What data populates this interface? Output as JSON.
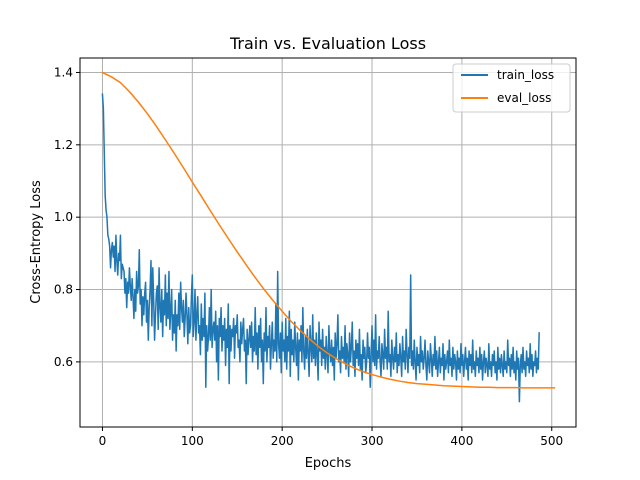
{
  "chart_data": {
    "type": "line",
    "title": "Train vs. Evaluation Loss",
    "xlabel": "Epochs",
    "ylabel": "Cross-Entropy Loss",
    "xlim": [
      -25,
      527
    ],
    "ylim": [
      0.42,
      1.44
    ],
    "x_ticks": [
      0,
      100,
      200,
      300,
      400,
      500
    ],
    "y_ticks": [
      0.6,
      0.8,
      1.0,
      1.2,
      1.4
    ],
    "y_tick_labels": [
      "0.6",
      "0.8",
      "1.0",
      "1.2",
      "1.4"
    ],
    "grid": true,
    "legend_position": "top-right",
    "series": [
      {
        "name": "train_loss",
        "color": "#1f77b4",
        "x_start": 0,
        "x_step": 1,
        "values": [
          1.34,
          1.3,
          1.18,
          1.06,
          1.02,
          1.0,
          0.95,
          0.94,
          0.92,
          0.86,
          0.91,
          0.93,
          0.89,
          0.92,
          0.85,
          0.95,
          0.88,
          0.84,
          0.9,
          0.88,
          0.95,
          0.83,
          0.87,
          0.86,
          0.85,
          0.79,
          0.83,
          0.75,
          0.82,
          0.79,
          0.86,
          0.81,
          0.77,
          0.83,
          0.78,
          0.72,
          0.8,
          0.74,
          0.85,
          0.79,
          0.81,
          0.91,
          0.76,
          0.8,
          0.7,
          0.78,
          0.73,
          0.79,
          0.82,
          0.71,
          0.77,
          0.66,
          0.75,
          0.8,
          0.88,
          0.7,
          0.86,
          0.77,
          0.66,
          0.73,
          0.79,
          0.81,
          0.69,
          0.86,
          0.75,
          0.71,
          0.8,
          0.67,
          0.77,
          0.73,
          0.84,
          0.7,
          0.79,
          0.72,
          0.85,
          0.69,
          0.74,
          0.8,
          0.66,
          0.73,
          0.68,
          0.77,
          0.63,
          0.73,
          0.7,
          0.79,
          0.69,
          0.82,
          0.75,
          0.71,
          0.77,
          0.67,
          0.72,
          0.79,
          0.73,
          0.65,
          0.75,
          0.68,
          0.7,
          0.78,
          0.84,
          0.67,
          0.71,
          0.8,
          0.66,
          0.73,
          0.78,
          0.68,
          0.7,
          0.62,
          0.76,
          0.66,
          0.72,
          0.67,
          0.79,
          0.53,
          0.7,
          0.63,
          0.67,
          0.75,
          0.66,
          0.8,
          0.64,
          0.69,
          0.71,
          0.66,
          0.74,
          0.6,
          0.7,
          0.55,
          0.72,
          0.67,
          0.75,
          0.63,
          0.7,
          0.66,
          0.72,
          0.59,
          0.69,
          0.64,
          0.76,
          0.54,
          0.7,
          0.63,
          0.69,
          0.67,
          0.72,
          0.61,
          0.7,
          0.68,
          0.73,
          0.64,
          0.66,
          0.6,
          0.71,
          0.65,
          0.69,
          0.72,
          0.63,
          0.66,
          0.54,
          0.69,
          0.62,
          0.66,
          0.7,
          0.64,
          0.71,
          0.6,
          0.67,
          0.63,
          0.75,
          0.62,
          0.68,
          0.58,
          0.7,
          0.64,
          0.72,
          0.6,
          0.66,
          0.54,
          0.68,
          0.63,
          0.75,
          0.6,
          0.67,
          0.64,
          0.7,
          0.58,
          0.65,
          0.71,
          0.61,
          0.66,
          0.63,
          0.76,
          0.6,
          0.85,
          0.65,
          0.61,
          0.68,
          0.57,
          0.71,
          0.63,
          0.66,
          0.6,
          0.72,
          0.58,
          0.67,
          0.63,
          0.74,
          0.56,
          0.69,
          0.62,
          0.66,
          0.6,
          0.71,
          0.64,
          0.59,
          0.68,
          0.55,
          0.66,
          0.63,
          0.7,
          0.6,
          0.75,
          0.63,
          0.58,
          0.67,
          0.61,
          0.69,
          0.62,
          0.56,
          0.7,
          0.64,
          0.6,
          0.73,
          0.61,
          0.66,
          0.59,
          0.68,
          0.62,
          0.55,
          0.71,
          0.63,
          0.66,
          0.59,
          0.69,
          0.61,
          0.64,
          0.58,
          0.67,
          0.62,
          0.57,
          0.7,
          0.63,
          0.6,
          0.66,
          0.59,
          0.64,
          0.55,
          0.68,
          0.61,
          0.65,
          0.73,
          0.6,
          0.63,
          0.57,
          0.67,
          0.61,
          0.64,
          0.6,
          0.7,
          0.58,
          0.65,
          0.62,
          0.56,
          0.68,
          0.6,
          0.64,
          0.71,
          0.59,
          0.63,
          0.56,
          0.66,
          0.61,
          0.65,
          0.59,
          0.69,
          0.58,
          0.62,
          0.55,
          0.66,
          0.61,
          0.64,
          0.57,
          0.6,
          0.68,
          0.61,
          0.64,
          0.53,
          0.62,
          0.7,
          0.6,
          0.66,
          0.59,
          0.73,
          0.58,
          0.63,
          0.61,
          0.67,
          0.6,
          0.56,
          0.65,
          0.62,
          0.58,
          0.69,
          0.61,
          0.64,
          0.58,
          0.74,
          0.6,
          0.62,
          0.56,
          0.66,
          0.61,
          0.58,
          0.64,
          0.6,
          0.68,
          0.57,
          0.62,
          0.59,
          0.65,
          0.61,
          0.56,
          0.67,
          0.6,
          0.63,
          0.58,
          0.69,
          0.62,
          0.57,
          0.64,
          0.61,
          0.84,
          0.59,
          0.63,
          0.58,
          0.66,
          0.6,
          0.55,
          0.64,
          0.59,
          0.62,
          0.57,
          0.67,
          0.6,
          0.63,
          0.58,
          0.61,
          0.66,
          0.59,
          0.55,
          0.63,
          0.6,
          0.57,
          0.65,
          0.61,
          0.56,
          0.62,
          0.59,
          0.67,
          0.58,
          0.63,
          0.56,
          0.6,
          0.64,
          0.57,
          0.61,
          0.59,
          0.65,
          0.55,
          0.62,
          0.58,
          0.6,
          0.63,
          0.57,
          0.66,
          0.59,
          0.61,
          0.56,
          0.64,
          0.58,
          0.62,
          0.6,
          0.55,
          0.63,
          0.58,
          0.61,
          0.57,
          0.65,
          0.59,
          0.62,
          0.56,
          0.6,
          0.64,
          0.58,
          0.61,
          0.55,
          0.63,
          0.59,
          0.62,
          0.57,
          0.66,
          0.58,
          0.6,
          0.56,
          0.63,
          0.59,
          0.61,
          0.57,
          0.64,
          0.58,
          0.62,
          0.55,
          0.6,
          0.63,
          0.57,
          0.61,
          0.59,
          0.56,
          0.65,
          0.58,
          0.6,
          0.56,
          0.62,
          0.59,
          0.63,
          0.57,
          0.6,
          0.55,
          0.64,
          0.58,
          0.61,
          0.57,
          0.62,
          0.59,
          0.56,
          0.63,
          0.58,
          0.6,
          0.57,
          0.66,
          0.59,
          0.61,
          0.56,
          0.62,
          0.58,
          0.64,
          0.57,
          0.6,
          0.55,
          0.63,
          0.58,
          0.61,
          0.49,
          0.59,
          0.62,
          0.57,
          0.64,
          0.58,
          0.6,
          0.56,
          0.63,
          0.59,
          0.61,
          0.57,
          0.65,
          0.58,
          0.62,
          0.56,
          0.6,
          0.59,
          0.63,
          0.57,
          0.61,
          0.58,
          0.68
        ]
      },
      {
        "name": "eval_loss",
        "color": "#ff7f0e",
        "x": [
          0,
          10,
          20,
          30,
          40,
          50,
          60,
          70,
          80,
          90,
          100,
          110,
          120,
          130,
          140,
          150,
          160,
          170,
          180,
          190,
          200,
          210,
          220,
          230,
          240,
          250,
          260,
          270,
          280,
          290,
          300,
          310,
          320,
          330,
          340,
          350,
          360,
          370,
          380,
          390,
          400,
          410,
          420,
          430,
          440,
          450,
          460,
          470,
          480,
          490,
          500,
          503
        ],
        "values": [
          1.4,
          1.388,
          1.372,
          1.347,
          1.318,
          1.286,
          1.251,
          1.214,
          1.176,
          1.137,
          1.097,
          1.058,
          1.018,
          0.979,
          0.941,
          0.904,
          0.868,
          0.833,
          0.8,
          0.769,
          0.74,
          0.712,
          0.687,
          0.664,
          0.643,
          0.625,
          0.609,
          0.595,
          0.583,
          0.573,
          0.565,
          0.558,
          0.552,
          0.547,
          0.543,
          0.54,
          0.538,
          0.536,
          0.534,
          0.533,
          0.532,
          0.531,
          0.53,
          0.53,
          0.529,
          0.529,
          0.529,
          0.528,
          0.528,
          0.528,
          0.528,
          0.528
        ]
      }
    ]
  }
}
